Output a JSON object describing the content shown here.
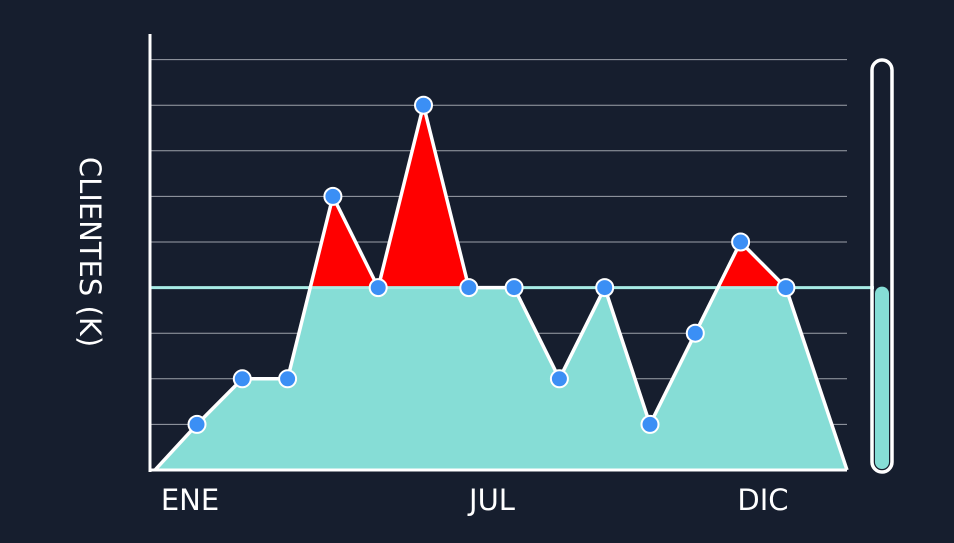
{
  "chart_data": {
    "type": "area",
    "ylabel": "CLIENTES (K)",
    "xlabel": "",
    "x_tick_labels": [
      {
        "label": "ENE",
        "x": 0
      },
      {
        "label": "JUL",
        "x": 6
      },
      {
        "label": "DIC",
        "x": 12
      }
    ],
    "x": [
      0,
      1,
      2,
      3,
      4,
      5,
      6,
      7,
      8,
      9,
      10,
      11,
      12,
      13,
      14
    ],
    "values": [
      1,
      2,
      2,
      6,
      4,
      8,
      4,
      4,
      2,
      4,
      1,
      3,
      5,
      4,
      0
    ],
    "threshold": 4,
    "xlim": [
      0,
      15
    ],
    "ylim": [
      0,
      9
    ],
    "grid": true,
    "level_gauge": 0.45,
    "colors": {
      "background": "#161e2e",
      "area_fill": "#86ddd6",
      "above_threshold": "#ff0000",
      "threshold_line": "#a8ece6",
      "line": "#ffffff",
      "marker": "#3b8ff5",
      "grid": "#c9ccd3"
    }
  }
}
